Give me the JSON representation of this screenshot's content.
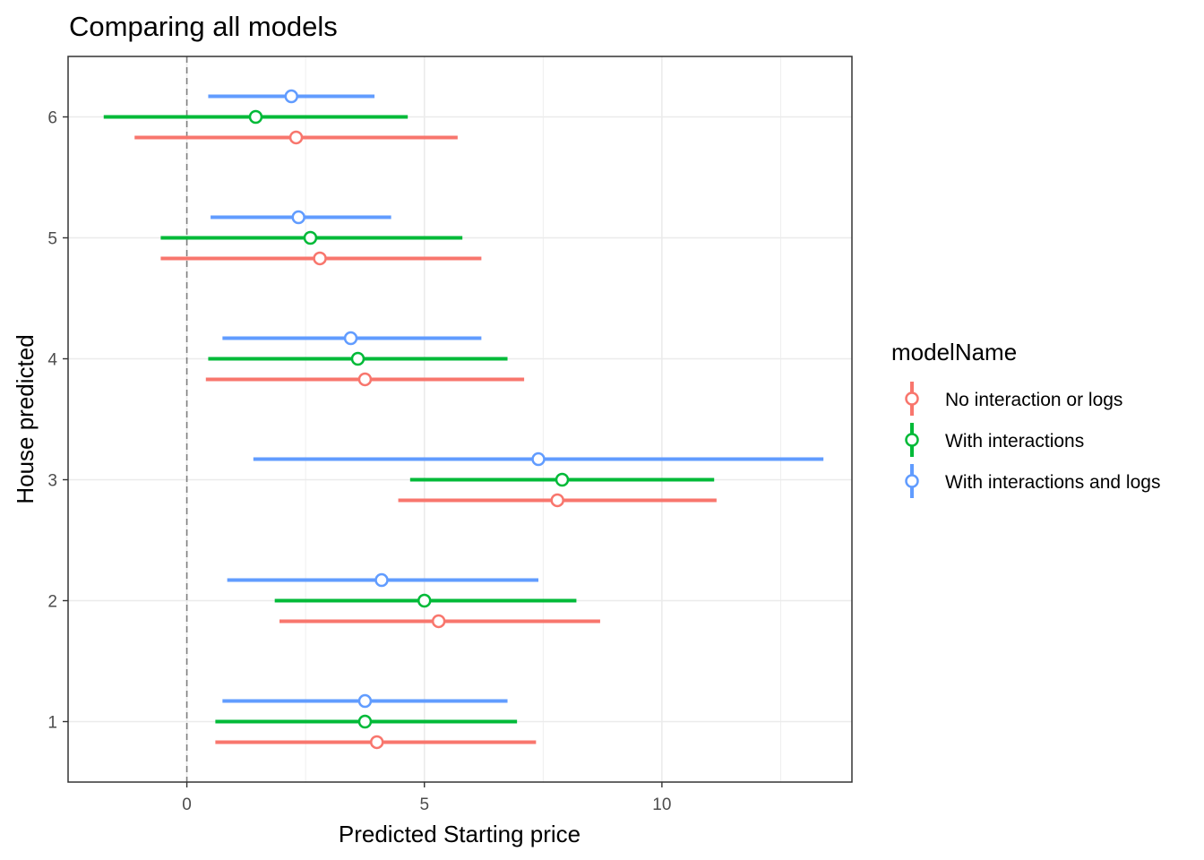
{
  "chart_data": {
    "type": "pointrange",
    "title": "Comparing all models",
    "xlabel": "Predicted Starting price",
    "ylabel": "House predicted",
    "xlim": [
      -2.5,
      14.0
    ],
    "ylim": [
      0.5,
      6.5
    ],
    "x_ticks": [
      0,
      5,
      10
    ],
    "y_ticks": [
      1,
      2,
      3,
      4,
      5,
      6
    ],
    "reference_line": {
      "x": 0,
      "style": "dashed"
    },
    "grid": true,
    "legend": {
      "title": "modelName",
      "placement": "right"
    },
    "series": [
      {
        "name": "No interaction or logs",
        "color": "#F8766D",
        "offset": -0.17,
        "points": [
          {
            "house": 1,
            "estimate": 4.0,
            "low": 0.6,
            "high": 7.35
          },
          {
            "house": 2,
            "estimate": 5.3,
            "low": 1.95,
            "high": 8.7
          },
          {
            "house": 3,
            "estimate": 7.8,
            "low": 4.45,
            "high": 11.15
          },
          {
            "house": 4,
            "estimate": 3.75,
            "low": 0.4,
            "high": 7.1
          },
          {
            "house": 5,
            "estimate": 2.8,
            "low": -0.55,
            "high": 6.2
          },
          {
            "house": 6,
            "estimate": 2.3,
            "low": -1.1,
            "high": 5.7
          }
        ]
      },
      {
        "name": "With interactions",
        "color": "#00BA38",
        "offset": 0,
        "points": [
          {
            "house": 1,
            "estimate": 3.75,
            "low": 0.6,
            "high": 6.95
          },
          {
            "house": 2,
            "estimate": 5.0,
            "low": 1.85,
            "high": 8.2
          },
          {
            "house": 3,
            "estimate": 7.9,
            "low": 4.7,
            "high": 11.1
          },
          {
            "house": 4,
            "estimate": 3.6,
            "low": 0.45,
            "high": 6.75
          },
          {
            "house": 5,
            "estimate": 2.6,
            "low": -0.55,
            "high": 5.8
          },
          {
            "house": 6,
            "estimate": 1.45,
            "low": -1.75,
            "high": 4.65
          }
        ]
      },
      {
        "name": "With interactions and logs",
        "color": "#619CFF",
        "offset": 0.17,
        "points": [
          {
            "house": 1,
            "estimate": 3.75,
            "low": 0.75,
            "high": 6.75
          },
          {
            "house": 2,
            "estimate": 4.1,
            "low": 0.85,
            "high": 7.4
          },
          {
            "house": 3,
            "estimate": 7.4,
            "low": 1.4,
            "high": 13.4
          },
          {
            "house": 4,
            "estimate": 3.45,
            "low": 0.75,
            "high": 6.2
          },
          {
            "house": 5,
            "estimate": 2.35,
            "low": 0.5,
            "high": 4.3
          },
          {
            "house": 6,
            "estimate": 2.2,
            "low": 0.45,
            "high": 3.95
          }
        ]
      }
    ]
  }
}
